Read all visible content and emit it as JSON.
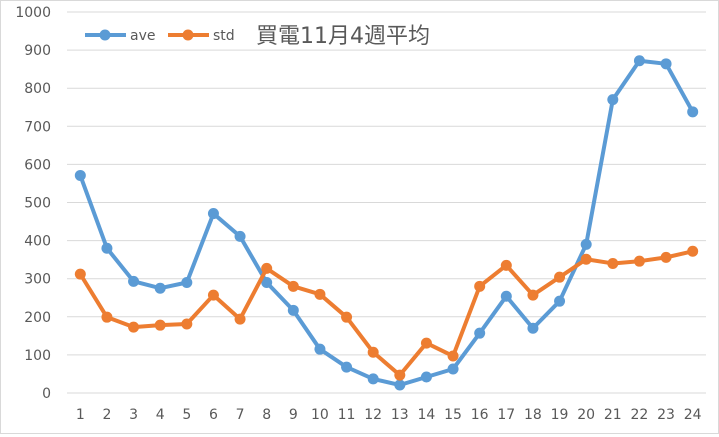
{
  "chart_data": {
    "type": "line",
    "title": "買電11月4週平均",
    "xlabel": "",
    "ylabel": "",
    "x": [
      1,
      2,
      3,
      4,
      5,
      6,
      7,
      8,
      9,
      10,
      11,
      12,
      13,
      14,
      15,
      16,
      17,
      18,
      19,
      20,
      21,
      22,
      23,
      24
    ],
    "ylim": [
      0,
      1000
    ],
    "yticks": [
      0,
      100,
      200,
      300,
      400,
      500,
      600,
      700,
      800,
      900,
      1000
    ],
    "grid": true,
    "legend_position": "top-left",
    "series": [
      {
        "name": "ave",
        "color": "#5b9bd5",
        "values": [
          571,
          380,
          293,
          275,
          290,
          471,
          411,
          290,
          217,
          115,
          68,
          37,
          21,
          42,
          63,
          157,
          254,
          170,
          241,
          390,
          770,
          872,
          864,
          738
        ]
      },
      {
        "name": "std",
        "color": "#ed7d31",
        "values": [
          312,
          199,
          173,
          178,
          181,
          257,
          194,
          327,
          280,
          259,
          199,
          107,
          47,
          131,
          97,
          280,
          335,
          257,
          304,
          351,
          340,
          346,
          356,
          372
        ]
      }
    ]
  }
}
